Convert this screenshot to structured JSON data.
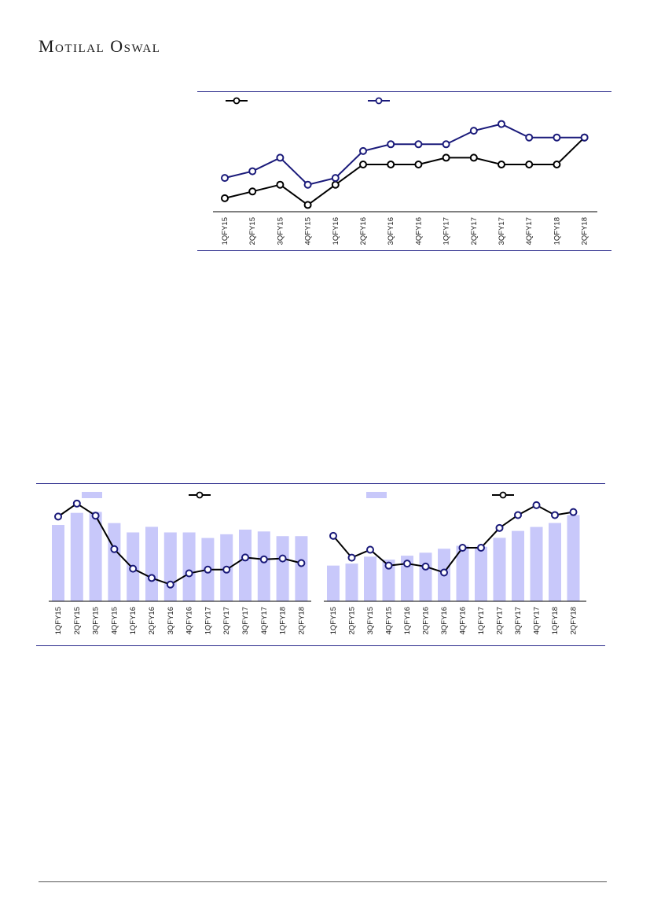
{
  "brand": {
    "logo_text": "Motilal Oswal"
  },
  "colors": {
    "accent": "#2b2b8c",
    "line_black": "#000000",
    "bar_fill": "#c8c8fa",
    "marker_fill": "#ffffff"
  },
  "chart_data": [
    {
      "type": "line",
      "categories": [
        "1QFY15",
        "2QFY15",
        "3QFY15",
        "4QFY15",
        "1QFY16",
        "2QFY16",
        "3QFY16",
        "4QFY16",
        "1QFY17",
        "2QFY17",
        "3QFY17",
        "4QFY17",
        "1QFY18",
        "2QFY18"
      ],
      "series": [
        {
          "color": "#000000",
          "values": [
            2,
            3,
            4,
            1,
            4,
            7,
            7,
            7,
            8,
            8,
            7,
            7,
            7,
            11
          ]
        },
        {
          "color": "#1a1a7a",
          "values": [
            5,
            6,
            8,
            4,
            5,
            9,
            10,
            10,
            10,
            12,
            13,
            11,
            11,
            11
          ]
        }
      ],
      "ylim": [
        0,
        14
      ],
      "grid": false,
      "legend": "top"
    },
    {
      "type": "bar",
      "categories": [
        "1QFY15",
        "2QFY15",
        "3QFY15",
        "4QFY15",
        "1QFY16",
        "2QFY16",
        "3QFY16",
        "4QFY16",
        "1QFY17",
        "2QFY17",
        "3QFY17",
        "4QFY17",
        "1QFY18",
        "2QFY18"
      ],
      "series": [
        {
          "type": "bar",
          "color": "#c8c8fa",
          "values": [
            8.2,
            9.5,
            9.6,
            8.4,
            7.4,
            8.0,
            7.4,
            7.4,
            6.8,
            7.2,
            7.7,
            7.5,
            7.0,
            7.0
          ]
        },
        {
          "type": "line",
          "color": "#000000",
          "values": [
            9.1,
            10.5,
            9.2,
            5.6,
            3.5,
            2.5,
            1.8,
            3.0,
            3.4,
            3.4,
            4.7,
            4.5,
            4.6,
            4.1
          ]
        }
      ],
      "ylim": [
        0,
        11.5
      ],
      "grid": false,
      "legend": "top"
    },
    {
      "type": "bar",
      "categories": [
        "1QFY15",
        "2QFY15",
        "3QFY15",
        "4QFY15",
        "1QFY16",
        "2QFY16",
        "3QFY16",
        "4QFY16",
        "1QFY17",
        "2QFY17",
        "3QFY17",
        "4QFY17",
        "1QFY18",
        "2QFY18"
      ],
      "series": [
        {
          "type": "bar",
          "color": "#c8c8fa",
          "values": [
            3.6,
            3.8,
            4.5,
            4.2,
            4.6,
            4.9,
            5.3,
            5.6,
            5.5,
            6.4,
            7.1,
            7.5,
            7.9,
            8.7
          ]
        },
        {
          "type": "line",
          "color": "#000000",
          "values": [
            6.6,
            4.4,
            5.2,
            3.6,
            3.8,
            3.5,
            2.9,
            5.4,
            5.4,
            7.4,
            8.7,
            9.7,
            8.7,
            9.0
          ]
        }
      ],
      "ylim": [
        0,
        10.8
      ],
      "grid": false,
      "legend": "top"
    }
  ]
}
